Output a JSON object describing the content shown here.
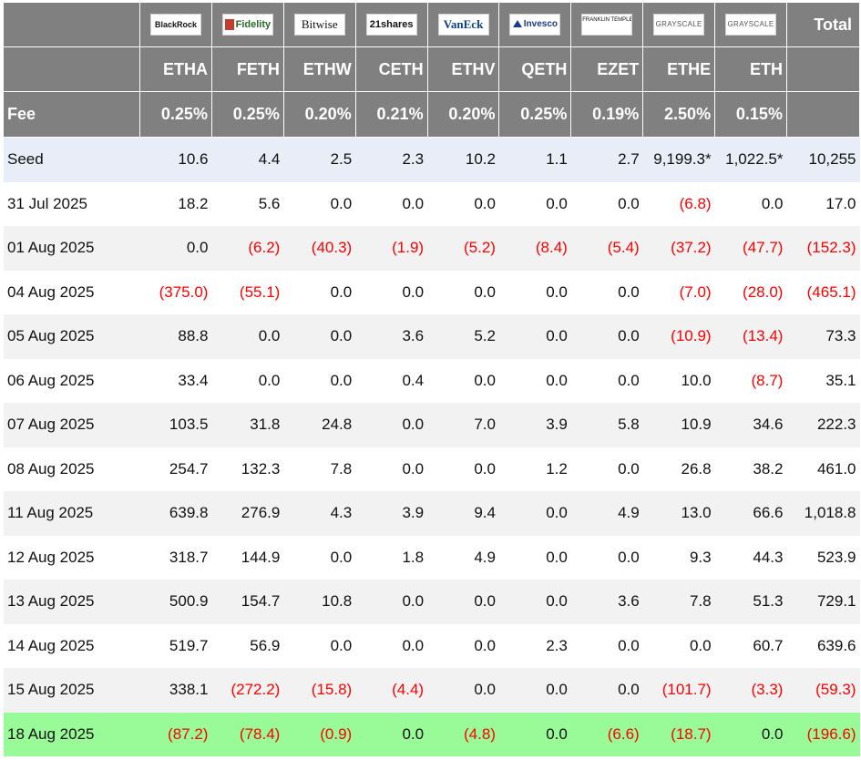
{
  "header": {
    "issuers": [
      "BlackRock",
      "Fidelity",
      "Bitwise",
      "21shares",
      "VanEck",
      "Invesco",
      "FRANKLIN TEMPLETON",
      "GRAYSCALE",
      "GRAYSCALE"
    ],
    "total_label": "Total",
    "tickers": [
      "ETHA",
      "FETH",
      "ETHW",
      "CETH",
      "ETHV",
      "QETH",
      "EZET",
      "ETHE",
      "ETH"
    ],
    "fee_label": "Fee",
    "fees": [
      "0.25%",
      "0.25%",
      "0.20%",
      "0.21%",
      "0.20%",
      "0.25%",
      "0.19%",
      "2.50%",
      "0.15%"
    ]
  },
  "rows": [
    {
      "label": "Seed",
      "values": [
        "10.6",
        "4.4",
        "2.5",
        "2.3",
        "10.2",
        "1.1",
        "2.7",
        "9,199.3*",
        "1,022.5*"
      ],
      "total": "10,255"
    },
    {
      "label": "31 Jul 2025",
      "values": [
        "18.2",
        "5.6",
        "0.0",
        "0.0",
        "0.0",
        "0.0",
        "0.0",
        "(6.8)",
        "0.0"
      ],
      "total": "17.0"
    },
    {
      "label": "01 Aug 2025",
      "values": [
        "0.0",
        "(6.2)",
        "(40.3)",
        "(1.9)",
        "(5.2)",
        "(8.4)",
        "(5.4)",
        "(37.2)",
        "(47.7)"
      ],
      "total": "(152.3)"
    },
    {
      "label": "04 Aug 2025",
      "values": [
        "(375.0)",
        "(55.1)",
        "0.0",
        "0.0",
        "0.0",
        "0.0",
        "0.0",
        "(7.0)",
        "(28.0)"
      ],
      "total": "(465.1)"
    },
    {
      "label": "05 Aug 2025",
      "values": [
        "88.8",
        "0.0",
        "0.0",
        "3.6",
        "5.2",
        "0.0",
        "0.0",
        "(10.9)",
        "(13.4)"
      ],
      "total": "73.3"
    },
    {
      "label": "06 Aug 2025",
      "values": [
        "33.4",
        "0.0",
        "0.0",
        "0.4",
        "0.0",
        "0.0",
        "0.0",
        "10.0",
        "(8.7)"
      ],
      "total": "35.1"
    },
    {
      "label": "07 Aug 2025",
      "values": [
        "103.5",
        "31.8",
        "24.8",
        "0.0",
        "7.0",
        "3.9",
        "5.8",
        "10.9",
        "34.6"
      ],
      "total": "222.3"
    },
    {
      "label": "08 Aug 2025",
      "values": [
        "254.7",
        "132.3",
        "7.8",
        "0.0",
        "0.0",
        "1.2",
        "0.0",
        "26.8",
        "38.2"
      ],
      "total": "461.0"
    },
    {
      "label": "11 Aug 2025",
      "values": [
        "639.8",
        "276.9",
        "4.3",
        "3.9",
        "9.4",
        "0.0",
        "4.9",
        "13.0",
        "66.6"
      ],
      "total": "1,018.8"
    },
    {
      "label": "12 Aug 2025",
      "values": [
        "318.7",
        "144.9",
        "0.0",
        "1.8",
        "4.9",
        "0.0",
        "0.0",
        "9.3",
        "44.3"
      ],
      "total": "523.9"
    },
    {
      "label": "13 Aug 2025",
      "values": [
        "500.9",
        "154.7",
        "10.8",
        "0.0",
        "0.0",
        "0.0",
        "3.6",
        "7.8",
        "51.3"
      ],
      "total": "729.1"
    },
    {
      "label": "14 Aug 2025",
      "values": [
        "519.7",
        "56.9",
        "0.0",
        "0.0",
        "0.0",
        "2.3",
        "0.0",
        "0.0",
        "60.7"
      ],
      "total": "639.6"
    },
    {
      "label": "15 Aug 2025",
      "values": [
        "338.1",
        "(272.2)",
        "(15.8)",
        "(4.4)",
        "0.0",
        "0.0",
        "0.0",
        "(101.7)",
        "(3.3)"
      ],
      "total": "(59.3)"
    },
    {
      "label": "18 Aug 2025",
      "values": [
        "(87.2)",
        "(78.4)",
        "(0.9)",
        "0.0",
        "(4.8)",
        "0.0",
        "(6.6)",
        "(18.7)",
        "0.0"
      ],
      "total": "(196.6)"
    }
  ],
  "colors": {
    "header_bg": "#808080",
    "header_text": "#ffffff",
    "seed_row_bg": "#e8edf8",
    "zebra_bg": "#f2f2f2",
    "latest_row_bg": "#98fb98",
    "negative_text": "#ff0000"
  },
  "icons": [
    "blackrock-logo",
    "fidelity-logo",
    "bitwise-logo",
    "21shares-logo",
    "vaneck-logo",
    "invesco-logo",
    "franklin-templeton-logo",
    "grayscale-logo",
    "grayscale-logo"
  ]
}
